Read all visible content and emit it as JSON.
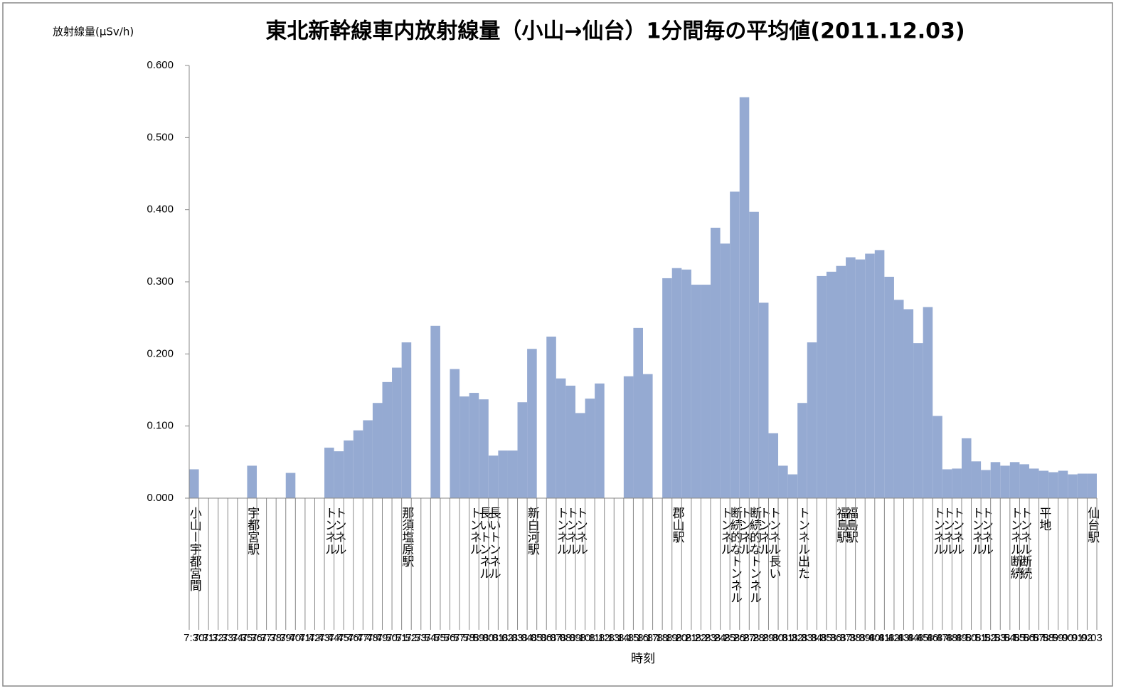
{
  "chart_data": {
    "type": "bar",
    "title": "東北新幹線車内放射線量（小山→仙台）1分間毎の平均値(2011.12.03)",
    "y_label": "放射線量(μSv/h)",
    "x_label": "時刻",
    "color": "#95aad2",
    "categories": [
      "7:30",
      "7:31",
      "7:32",
      "7:33",
      "7:34",
      "7:35",
      "7:36",
      "7:37",
      "7:38",
      "7:39",
      "7:40",
      "7:41",
      "7:42",
      "7:43",
      "7:44",
      "7:45",
      "7:46",
      "7:47",
      "7:48",
      "7:49",
      "7:50",
      "7:51",
      "7:52",
      "7:53",
      "7:54",
      "7:55",
      "7:56",
      "7:57",
      "7:58",
      "7:59",
      "8:00",
      "8:01",
      "8:02",
      "8:03",
      "8:04",
      "8:05",
      "8:06",
      "8:07",
      "8:08",
      "8:09",
      "8:10",
      "8:11",
      "8:12",
      "8:13",
      "8:14",
      "8:15",
      "8:16",
      "8:17",
      "8:18",
      "8:19",
      "8:20",
      "8:21",
      "8:22",
      "8:23",
      "8:24",
      "8:25",
      "8:26",
      "8:27",
      "8:28",
      "8:29",
      "8:30",
      "8:31",
      "8:32",
      "8:33",
      "8:34",
      "8:35",
      "8:36",
      "8:37",
      "8:38",
      "8:39",
      "8:40",
      "8:41",
      "8:42",
      "8:43",
      "8:44",
      "8:45",
      "8:46",
      "8:47",
      "8:48",
      "8:49",
      "8:50",
      "8:51",
      "8:52",
      "8:53",
      "8:54",
      "8:55",
      "8:56",
      "8:57",
      "8:58",
      "8:59",
      "9:00",
      "9:01",
      "9:02",
      "9:03"
    ],
    "values": [
      0.04,
      null,
      null,
      null,
      null,
      null,
      0.045,
      null,
      null,
      null,
      0.035,
      null,
      null,
      null,
      0.07,
      0.065,
      0.08,
      0.094,
      0.108,
      0.132,
      0.161,
      0.181,
      0.216,
      null,
      null,
      0.239,
      null,
      0.179,
      0.141,
      0.146,
      0.137,
      0.059,
      0.066,
      0.066,
      0.133,
      0.207,
      null,
      0.224,
      0.166,
      0.156,
      0.118,
      0.138,
      0.159,
      null,
      null,
      0.169,
      0.236,
      0.172,
      null,
      0.305,
      0.319,
      0.317,
      0.296,
      0.296,
      0.375,
      0.353,
      0.425,
      0.556,
      0.397,
      0.271,
      0.09,
      0.045,
      0.033,
      0.132,
      0.216,
      0.308,
      0.314,
      0.322,
      0.334,
      0.331,
      0.339,
      0.344,
      0.307,
      0.275,
      0.262,
      0.215,
      0.265,
      0.114,
      0.04,
      0.041,
      0.083,
      0.051,
      0.039,
      0.05,
      0.045,
      0.05,
      0.047,
      0.041,
      0.038,
      0.036,
      0.038,
      0.033,
      0.034,
      0.034
    ],
    "category_notes": [
      "小山ー宇都宮間",
      null,
      null,
      null,
      null,
      null,
      "宇都宮駅",
      null,
      null,
      null,
      null,
      null,
      null,
      null,
      "トンネル",
      "トンネル",
      null,
      null,
      null,
      null,
      null,
      null,
      "那須塩原駅",
      null,
      null,
      null,
      null,
      null,
      null,
      "トンネル",
      "長いトンネル",
      "長いトンネル",
      null,
      null,
      null,
      "新白河駅",
      null,
      null,
      "トンネル",
      "トンネル",
      "トンネル",
      null,
      null,
      null,
      null,
      null,
      null,
      null,
      null,
      null,
      "郡山駅",
      null,
      null,
      null,
      null,
      "トンネル",
      "断続的なトンネル",
      "トンネル",
      "断続的なトンネル",
      "トンネル",
      "トンネル長い",
      null,
      null,
      "トンネル出た",
      null,
      null,
      null,
      "福島駅",
      "福島駅",
      null,
      null,
      null,
      null,
      null,
      null,
      null,
      null,
      "トンネル",
      "トンネル",
      "トンネル",
      null,
      "トンネル",
      "トンネル",
      null,
      null,
      "トンネル断続",
      "トンネル断続",
      null,
      "平地",
      null,
      null,
      null,
      null,
      "仙台駅"
    ],
    "ylim": [
      0,
      0.6
    ],
    "yticks": [
      {
        "value": 0,
        "label": "0.000"
      },
      {
        "value": 0.1,
        "label": "0.100"
      },
      {
        "value": 0.2,
        "label": "0.200"
      },
      {
        "value": 0.3,
        "label": "0.300"
      },
      {
        "value": 0.4,
        "label": "0.400"
      },
      {
        "value": 0.5,
        "label": "0.500"
      },
      {
        "value": 0.6,
        "label": "0.600"
      }
    ]
  }
}
